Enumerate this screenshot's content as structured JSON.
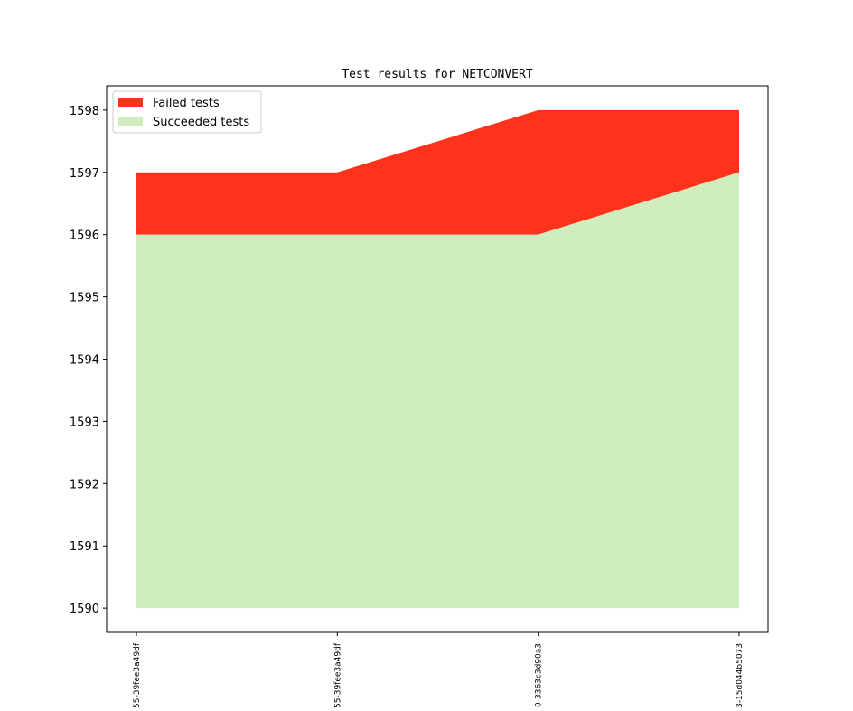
{
  "chart_data": {
    "type": "area",
    "title": "Test results for NETCONVERT",
    "xlabel": "",
    "ylabel": "",
    "categories": [
      "55-39fee3a49df",
      "55-39fee3a49df",
      "0-3363c3d90a3",
      "3-15d044b5073"
    ],
    "ylim": [
      1589.61,
      1598.39
    ],
    "baseline": 1590,
    "yticks": [
      1590,
      1591,
      1592,
      1593,
      1594,
      1595,
      1596,
      1597,
      1598
    ],
    "series": [
      {
        "name": "Succeeded tests",
        "values": [
          1596,
          1596,
          1596,
          1597
        ],
        "color": "#d0edbe"
      },
      {
        "name": "Failed tests",
        "values": [
          1,
          1,
          2,
          1
        ],
        "stacked_top": [
          1597,
          1597,
          1598,
          1598
        ],
        "color": "#ff331c"
      }
    ],
    "legend": {
      "position": "top-left",
      "entries": [
        "Failed tests",
        "Succeeded tests"
      ]
    },
    "grid": false
  }
}
